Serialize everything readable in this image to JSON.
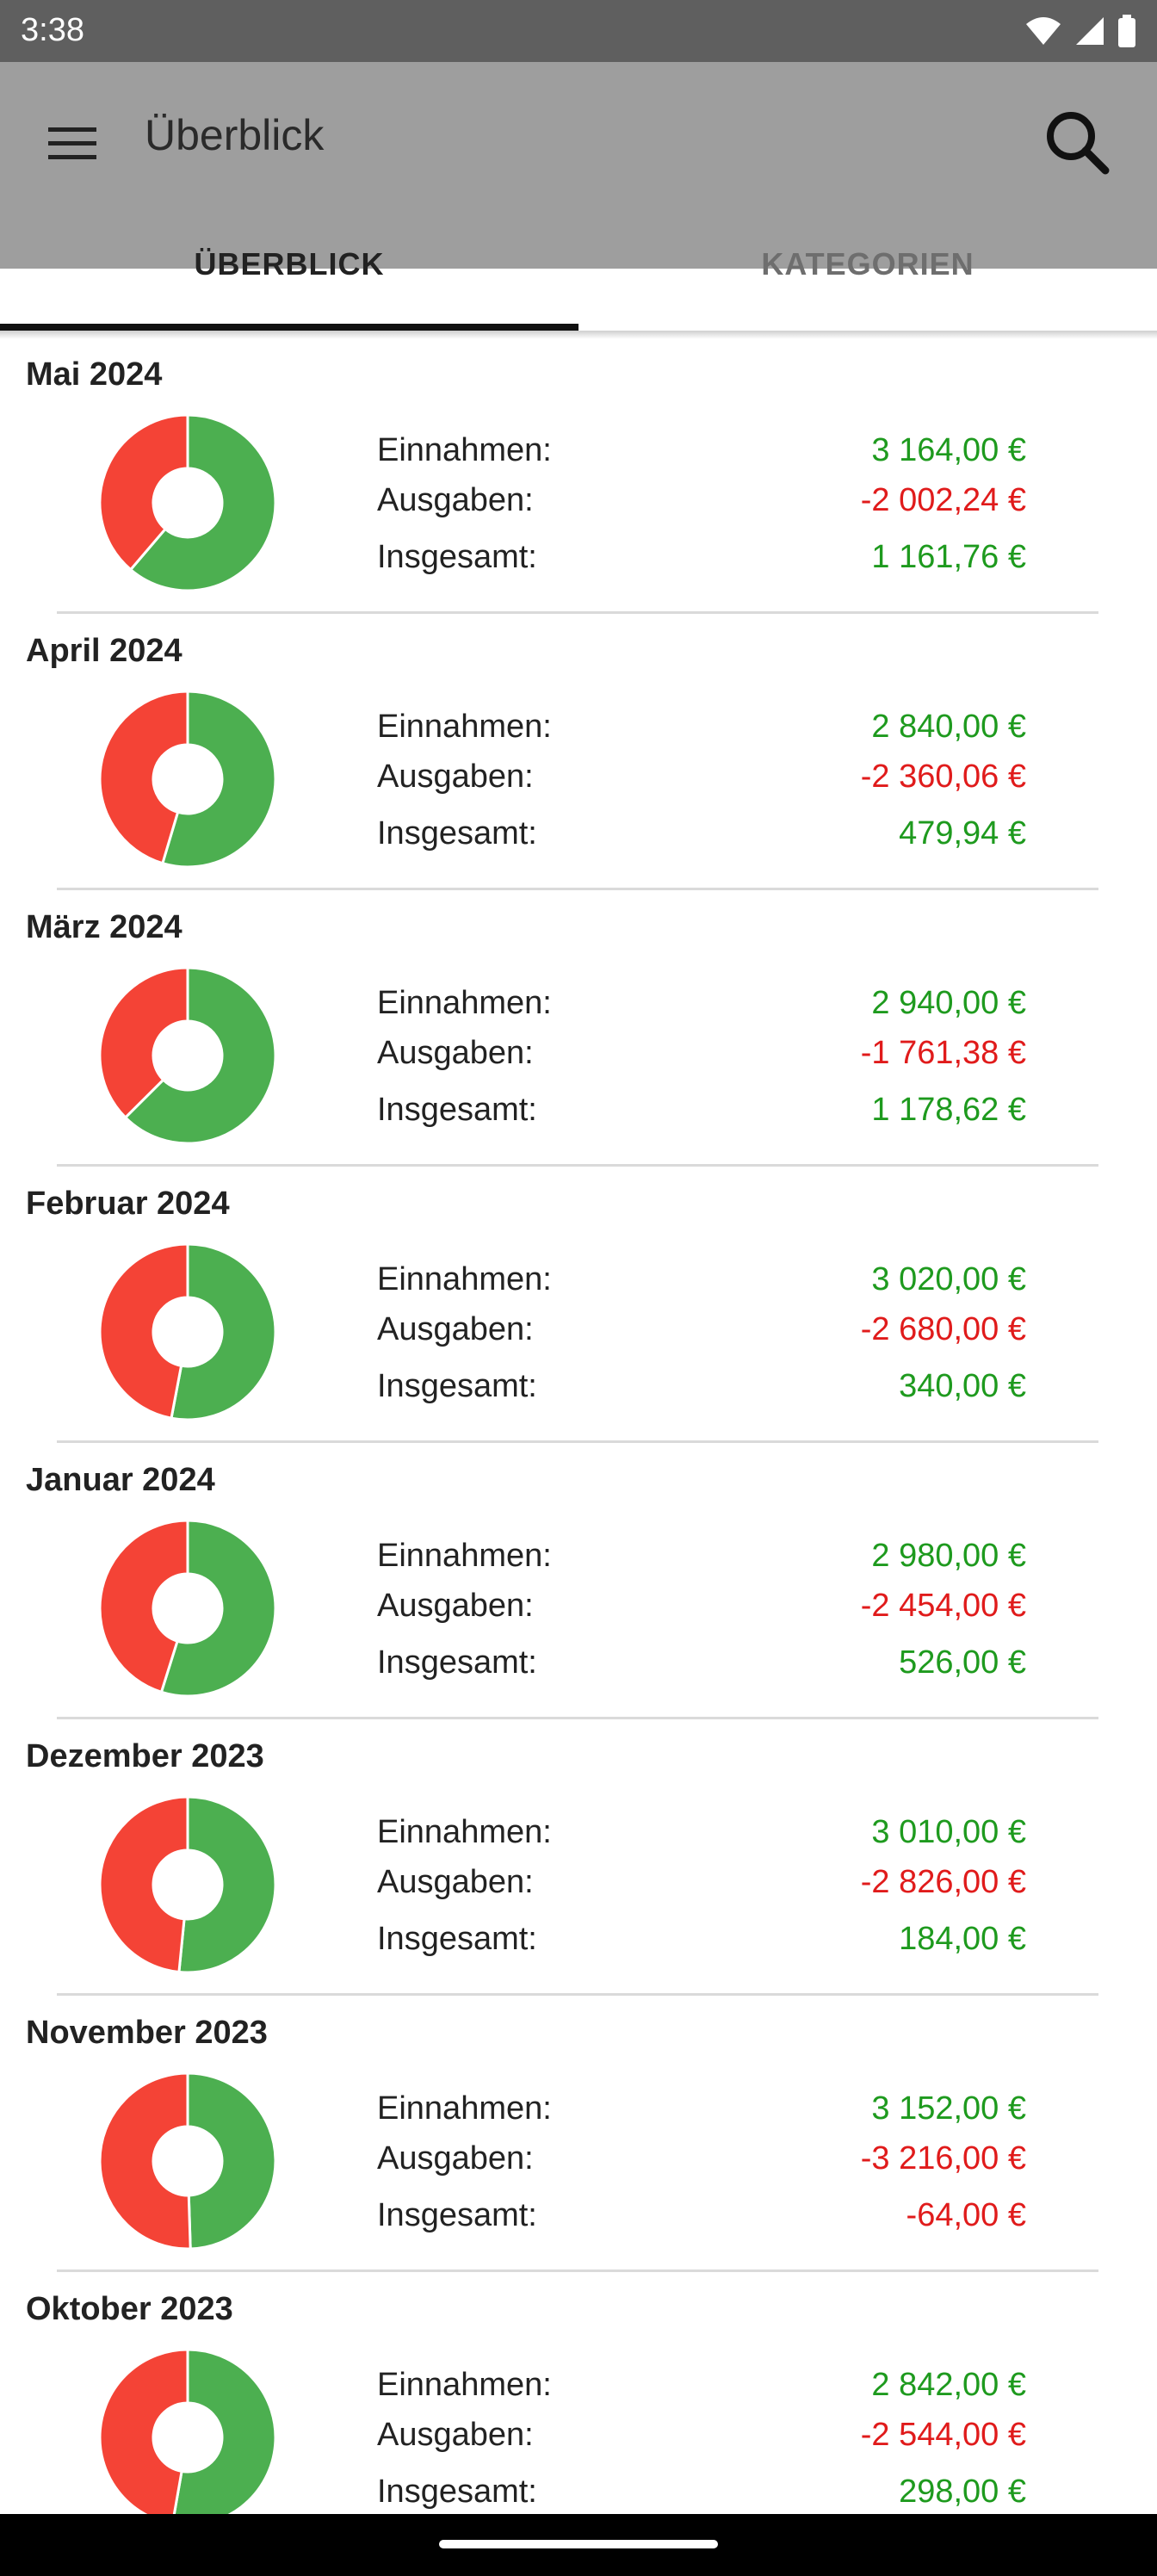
{
  "status": {
    "time": "3:38"
  },
  "appbar": {
    "title": "Überblick",
    "menu_icon": "menu-icon",
    "search_icon": "search-icon"
  },
  "tabs": [
    {
      "label": "ÜBERBLICK",
      "active": true
    },
    {
      "label": "KATEGORIEN",
      "active": false
    }
  ],
  "labels": {
    "income": "Einnahmen:",
    "expenses": "Ausgaben:",
    "total": "Insgesamt:"
  },
  "colors": {
    "income": "#4caf50",
    "expense": "#f44336",
    "green_text": "#1e9a1e",
    "red_text": "#e01b1b"
  },
  "months": [
    {
      "name": "Mai 2024",
      "income": "3 164,00 €",
      "expenses": "-2 002,24 €",
      "total": "1 161,76 €",
      "total_negative": false,
      "income_value": 3164.0,
      "expense_value": 2002.24
    },
    {
      "name": "April 2024",
      "income": "2 840,00 €",
      "expenses": "-2 360,06 €",
      "total": "479,94 €",
      "total_negative": false,
      "income_value": 2840.0,
      "expense_value": 2360.06
    },
    {
      "name": "März 2024",
      "income": "2 940,00 €",
      "expenses": "-1 761,38 €",
      "total": "1 178,62 €",
      "total_negative": false,
      "income_value": 2940.0,
      "expense_value": 1761.38
    },
    {
      "name": "Februar 2024",
      "income": "3 020,00 €",
      "expenses": "-2 680,00 €",
      "total": "340,00 €",
      "total_negative": false,
      "income_value": 3020.0,
      "expense_value": 2680.0
    },
    {
      "name": "Januar 2024",
      "income": "2 980,00 €",
      "expenses": "-2 454,00 €",
      "total": "526,00 €",
      "total_negative": false,
      "income_value": 2980.0,
      "expense_value": 2454.0
    },
    {
      "name": "Dezember 2023",
      "income": "3 010,00 €",
      "expenses": "-2 826,00 €",
      "total": "184,00 €",
      "total_negative": false,
      "income_value": 3010.0,
      "expense_value": 2826.0
    },
    {
      "name": "November 2023",
      "income": "3 152,00 €",
      "expenses": "-3 216,00 €",
      "total": "-64,00 €",
      "total_negative": true,
      "income_value": 3152.0,
      "expense_value": 3216.0
    },
    {
      "name": "Oktober 2023",
      "income": "2 842,00 €",
      "expenses": "-2 544,00 €",
      "total": "298,00 €",
      "total_negative": false,
      "income_value": 2842.0,
      "expense_value": 2544.0
    }
  ]
}
